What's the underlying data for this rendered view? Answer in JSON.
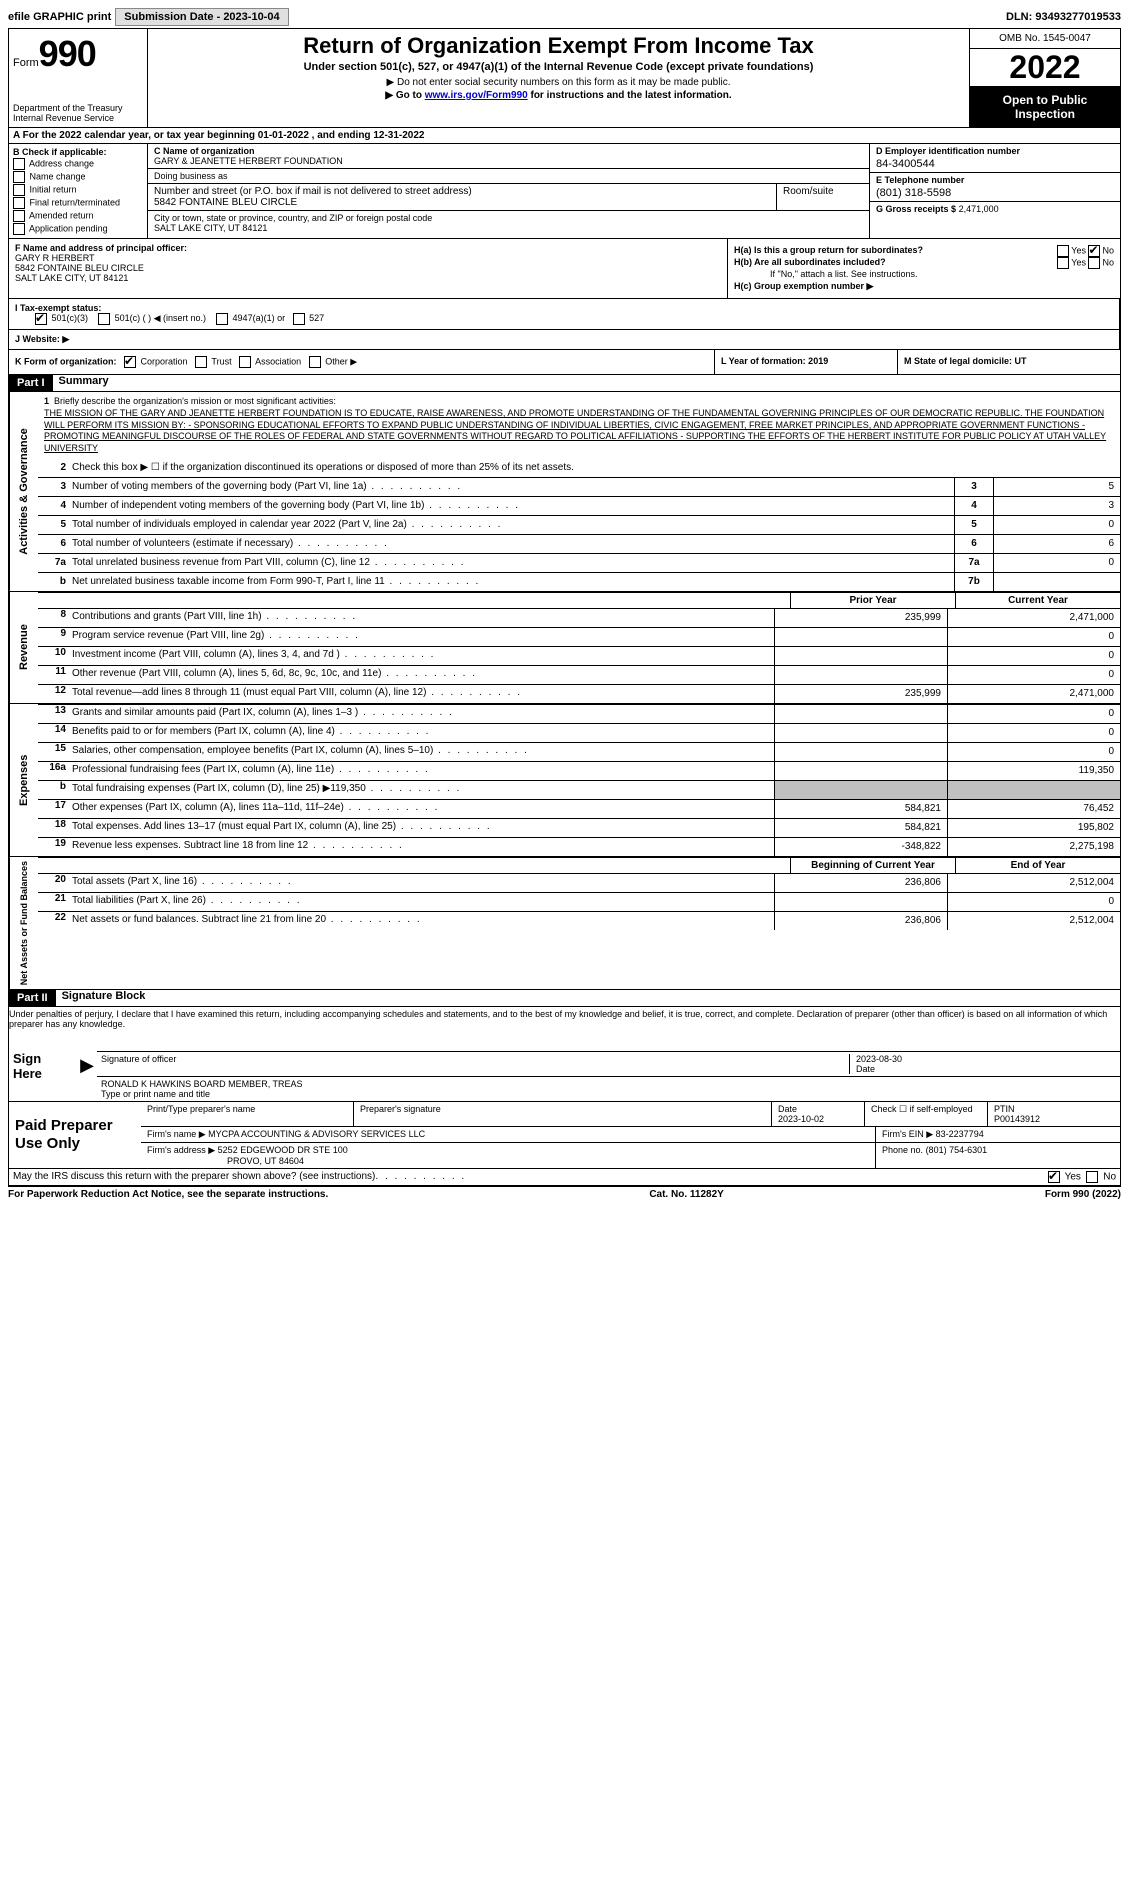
{
  "top": {
    "efile": "efile GRAPHIC print",
    "submission_label": "Submission Date - 2023-10-04",
    "dln": "DLN: 93493277019533"
  },
  "header": {
    "form_label": "Form",
    "form_number": "990",
    "dept": "Department of the Treasury",
    "irs": "Internal Revenue Service",
    "title": "Return of Organization Exempt From Income Tax",
    "subtitle": "Under section 501(c), 527, or 4947(a)(1) of the Internal Revenue Code (except private foundations)",
    "note1": "▶ Do not enter social security numbers on this form as it may be made public.",
    "note2_pre": "▶ Go to ",
    "note2_link": "www.irs.gov/Form990",
    "note2_post": " for instructions and the latest information.",
    "omb": "OMB No. 1545-0047",
    "year": "2022",
    "open": "Open to Public Inspection"
  },
  "row_a": "A For the 2022 calendar year, or tax year beginning 01-01-2022    , and ending 12-31-2022",
  "section_b": {
    "label": "B Check if applicable:",
    "items": [
      "Address change",
      "Name change",
      "Initial return",
      "Final return/terminated",
      "Amended return",
      "Application pending"
    ]
  },
  "section_c": {
    "c_label": "C Name of organization",
    "org_name": "GARY & JEANETTE HERBERT FOUNDATION",
    "dba_label": "Doing business as",
    "addr_label": "Number and street (or P.O. box if mail is not delivered to street address)",
    "addr": "5842 FONTAINE BLEU CIRCLE",
    "room_label": "Room/suite",
    "city_label": "City or town, state or province, country, and ZIP or foreign postal code",
    "city": "SALT LAKE CITY, UT  84121"
  },
  "section_d": {
    "d_label": "D Employer identification number",
    "ein": "84-3400544",
    "e_label": "E Telephone number",
    "phone": "(801) 318-5598",
    "g_label": "G Gross receipts $",
    "gross": "2,471,000"
  },
  "section_f": {
    "label": "F  Name and address of principal officer:",
    "name": "GARY R HERBERT",
    "addr1": "5842 FONTAINE BLEU CIRCLE",
    "addr2": "SALT LAKE CITY, UT  84121"
  },
  "section_h": {
    "ha": "H(a)  Is this a group return for subordinates?",
    "hb": "H(b)  Are all subordinates included?",
    "hb_note": "If \"No,\" attach a list. See instructions.",
    "hc": "H(c)  Group exemption number ▶"
  },
  "row_i": {
    "label": "I    Tax-exempt status:",
    "opts": [
      "501(c)(3)",
      "501(c) (  ) ◀ (insert no.)",
      "4947(a)(1) or",
      "527"
    ]
  },
  "row_j": "J   Website: ▶",
  "row_k": {
    "label": "K Form of organization:",
    "opts": [
      "Corporation",
      "Trust",
      "Association",
      "Other ▶"
    ]
  },
  "row_l": "L Year of formation: 2019",
  "row_m": "M State of legal domicile: UT",
  "part1": {
    "header": "Part I",
    "title": "Summary",
    "line1_label": "Briefly describe the organization's mission or most significant activities:",
    "mission": "THE MISSION OF THE GARY AND JEANETTE HERBERT FOUNDATION IS TO EDUCATE, RAISE AWARENESS, AND PROMOTE UNDERSTANDING OF THE FUNDAMENTAL GOVERNING PRINCIPLES OF OUR DEMOCRATIC REPUBLIC. THE FOUNDATION WILL PERFORM ITS MISSION BY: - SPONSORING EDUCATIONAL EFFORTS TO EXPAND PUBLIC UNDERSTANDING OF INDIVIDUAL LIBERTIES, CIVIC ENGAGEMENT, FREE MARKET PRINCIPLES, AND APPROPRIATE GOVERNMENT FUNCTIONS - PROMOTING MEANINGFUL DISCOURSE OF THE ROLES OF FEDERAL AND STATE GOVERNMENTS WITHOUT REGARD TO POLITICAL AFFILIATIONS - SUPPORTING THE EFFORTS OF THE HERBERT INSTITUTE FOR PUBLIC POLICY AT UTAH VALLEY UNIVERSITY",
    "line2": "Check this box ▶ ☐  if the organization discontinued its operations or disposed of more than 25% of its net assets.",
    "lines": [
      {
        "n": "3",
        "t": "Number of voting members of the governing body (Part VI, line 1a)",
        "box": "3",
        "v": "5"
      },
      {
        "n": "4",
        "t": "Number of independent voting members of the governing body (Part VI, line 1b)",
        "box": "4",
        "v": "3"
      },
      {
        "n": "5",
        "t": "Total number of individuals employed in calendar year 2022 (Part V, line 2a)",
        "box": "5",
        "v": "0"
      },
      {
        "n": "6",
        "t": "Total number of volunteers (estimate if necessary)",
        "box": "6",
        "v": "6"
      },
      {
        "n": "7a",
        "t": "Total unrelated business revenue from Part VIII, column (C), line 12",
        "box": "7a",
        "v": "0"
      },
      {
        "n": "b",
        "t": "Net unrelated business taxable income from Form 990-T, Part I, line 11",
        "box": "7b",
        "v": ""
      }
    ],
    "col_head_prior": "Prior Year",
    "col_head_current": "Current Year",
    "revenue": [
      {
        "n": "8",
        "t": "Contributions and grants (Part VIII, line 1h)",
        "p": "235,999",
        "c": "2,471,000"
      },
      {
        "n": "9",
        "t": "Program service revenue (Part VIII, line 2g)",
        "p": "",
        "c": "0"
      },
      {
        "n": "10",
        "t": "Investment income (Part VIII, column (A), lines 3, 4, and 7d )",
        "p": "",
        "c": "0"
      },
      {
        "n": "11",
        "t": "Other revenue (Part VIII, column (A), lines 5, 6d, 8c, 9c, 10c, and 11e)",
        "p": "",
        "c": "0"
      },
      {
        "n": "12",
        "t": "Total revenue—add lines 8 through 11 (must equal Part VIII, column (A), line 12)",
        "p": "235,999",
        "c": "2,471,000"
      }
    ],
    "expenses": [
      {
        "n": "13",
        "t": "Grants and similar amounts paid (Part IX, column (A), lines 1–3 )",
        "p": "",
        "c": "0"
      },
      {
        "n": "14",
        "t": "Benefits paid to or for members (Part IX, column (A), line 4)",
        "p": "",
        "c": "0"
      },
      {
        "n": "15",
        "t": "Salaries, other compensation, employee benefits (Part IX, column (A), lines 5–10)",
        "p": "",
        "c": "0"
      },
      {
        "n": "16a",
        "t": "Professional fundraising fees (Part IX, column (A), line 11e)",
        "p": "",
        "c": "119,350"
      },
      {
        "n": "b",
        "t": "Total fundraising expenses (Part IX, column (D), line 25) ▶119,350",
        "p": "shaded",
        "c": "shaded"
      },
      {
        "n": "17",
        "t": "Other expenses (Part IX, column (A), lines 11a–11d, 11f–24e)",
        "p": "584,821",
        "c": "76,452"
      },
      {
        "n": "18",
        "t": "Total expenses. Add lines 13–17 (must equal Part IX, column (A), line 25)",
        "p": "584,821",
        "c": "195,802"
      },
      {
        "n": "19",
        "t": "Revenue less expenses. Subtract line 18 from line 12",
        "p": "-348,822",
        "c": "2,275,198"
      }
    ],
    "col_head_begin": "Beginning of Current Year",
    "col_head_end": "End of Year",
    "netassets": [
      {
        "n": "20",
        "t": "Total assets (Part X, line 16)",
        "p": "236,806",
        "c": "2,512,004"
      },
      {
        "n": "21",
        "t": "Total liabilities (Part X, line 26)",
        "p": "",
        "c": "0"
      },
      {
        "n": "22",
        "t": "Net assets or fund balances. Subtract line 21 from line 20",
        "p": "236,806",
        "c": "2,512,004"
      }
    ]
  },
  "part2": {
    "header": "Part II",
    "title": "Signature Block",
    "intro": "Under penalties of perjury, I declare that I have examined this return, including accompanying schedules and statements, and to the best of my knowledge and belief, it is true, correct, and complete. Declaration of preparer (other than officer) is based on all information of which preparer has any knowledge.",
    "sign_here": "Sign Here",
    "sig_officer": "Signature of officer",
    "sig_date_label": "Date",
    "sig_date": "2023-08-30",
    "officer_name": "RONALD K HAWKINS BOARD MEMBER, TREAS",
    "type_name": "Type or print name and title",
    "paid_prep": "Paid Preparer Use Only",
    "prep_name_label": "Print/Type preparer's name",
    "prep_sig_label": "Preparer's signature",
    "prep_date_label": "Date",
    "prep_date": "2023-10-02",
    "prep_check": "Check ☐ if self-employed",
    "ptin_label": "PTIN",
    "ptin": "P00143912",
    "firm_name_label": "Firm's name    ▶",
    "firm_name": "MYCPA ACCOUNTING & ADVISORY SERVICES LLC",
    "firm_ein_label": "Firm's EIN ▶",
    "firm_ein": "83-2237794",
    "firm_addr_label": "Firm's address ▶",
    "firm_addr1": "5252 EDGEWOOD DR STE 100",
    "firm_addr2": "PROVO, UT  84604",
    "firm_phone_label": "Phone no.",
    "firm_phone": "(801) 754-6301",
    "discuss": "May the IRS discuss this return with the preparer shown above? (see instructions)"
  },
  "footer": {
    "left": "For Paperwork Reduction Act Notice, see the separate instructions.",
    "mid": "Cat. No. 11282Y",
    "right": "Form 990 (2022)"
  }
}
